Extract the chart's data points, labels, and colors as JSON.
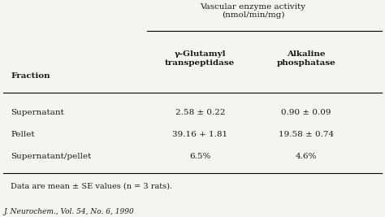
{
  "title": "Vascular enzyme activity\n(nmol/min/mg)",
  "col_headers": [
    "γ-Glutamyl\ntranspeptidase",
    "Alkaline\nphosphatase"
  ],
  "row_headers": [
    "Fraction",
    "Supernatant",
    "Pellet",
    "Supernatant/pellet"
  ],
  "data": [
    [
      "2.58 ± 0.22",
      "0.90 ± 0.09"
    ],
    [
      "39.16 + 1.81",
      "19.58 ± 0.74"
    ],
    [
      "6.5%",
      "4.6%"
    ]
  ],
  "footnote": "Data are mean ± SE values (n = 3 rats).",
  "citation": "J. Neurochem., Vol. 54, No. 6, 1990",
  "bg_color": "#f5f5f0",
  "text_color": "#1a1a1a"
}
